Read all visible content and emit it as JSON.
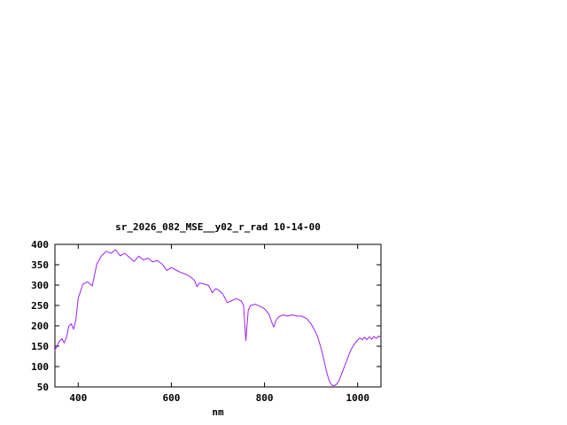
{
  "chart": {
    "background": "#ffffff",
    "axis_color": "#000000",
    "text_color": "#000000"
  },
  "chart_data": {
    "type": "line",
    "title": "sr_2026_082_MSE__y02_r_rad 10-14-00",
    "xlabel": "nm",
    "ylabel": "",
    "xlim": [
      350,
      1050
    ],
    "ylim": [
      50,
      400
    ],
    "xticks": [
      400,
      600,
      800,
      1000
    ],
    "yticks": [
      50,
      100,
      150,
      200,
      250,
      300,
      350,
      400
    ],
    "grid": false,
    "legend": "none",
    "series": [
      {
        "name": "sr_2026_082_MSE__y02_r_rad",
        "color": "#a020f0",
        "x": [
          350,
          355,
          360,
          365,
          370,
          375,
          380,
          385,
          390,
          395,
          400,
          410,
          420,
          430,
          440,
          450,
          460,
          470,
          480,
          490,
          500,
          510,
          520,
          530,
          540,
          550,
          560,
          570,
          580,
          590,
          600,
          610,
          620,
          630,
          640,
          650,
          655,
          660,
          670,
          680,
          688,
          695,
          700,
          710,
          720,
          730,
          740,
          750,
          755,
          760,
          765,
          770,
          780,
          790,
          800,
          810,
          815,
          820,
          825,
          830,
          840,
          850,
          860,
          870,
          880,
          890,
          900,
          910,
          915,
          920,
          925,
          930,
          935,
          940,
          945,
          950,
          955,
          960,
          965,
          970,
          975,
          980,
          985,
          990,
          995,
          1000,
          1005,
          1010,
          1015,
          1020,
          1025,
          1030,
          1035,
          1040,
          1045,
          1050
        ],
        "y": [
          140,
          152,
          163,
          168,
          158,
          172,
          200,
          205,
          192,
          215,
          268,
          302,
          308,
          298,
          352,
          372,
          383,
          378,
          387,
          372,
          378,
          368,
          358,
          371,
          362,
          366,
          357,
          360,
          352,
          336,
          343,
          337,
          331,
          327,
          321,
          311,
          296,
          305,
          303,
          299,
          281,
          291,
          289,
          279,
          257,
          262,
          267,
          261,
          250,
          164,
          238,
          250,
          253,
          248,
          242,
          228,
          210,
          197,
          214,
          222,
          227,
          224,
          227,
          224,
          224,
          218,
          205,
          184,
          170,
          150,
          129,
          104,
          80,
          62,
          54,
          53,
          57,
          66,
          80,
          95,
          110,
          125,
          140,
          150,
          158,
          165,
          170,
          166,
          172,
          166,
          173,
          167,
          174,
          169,
          175,
          171
        ]
      }
    ]
  }
}
